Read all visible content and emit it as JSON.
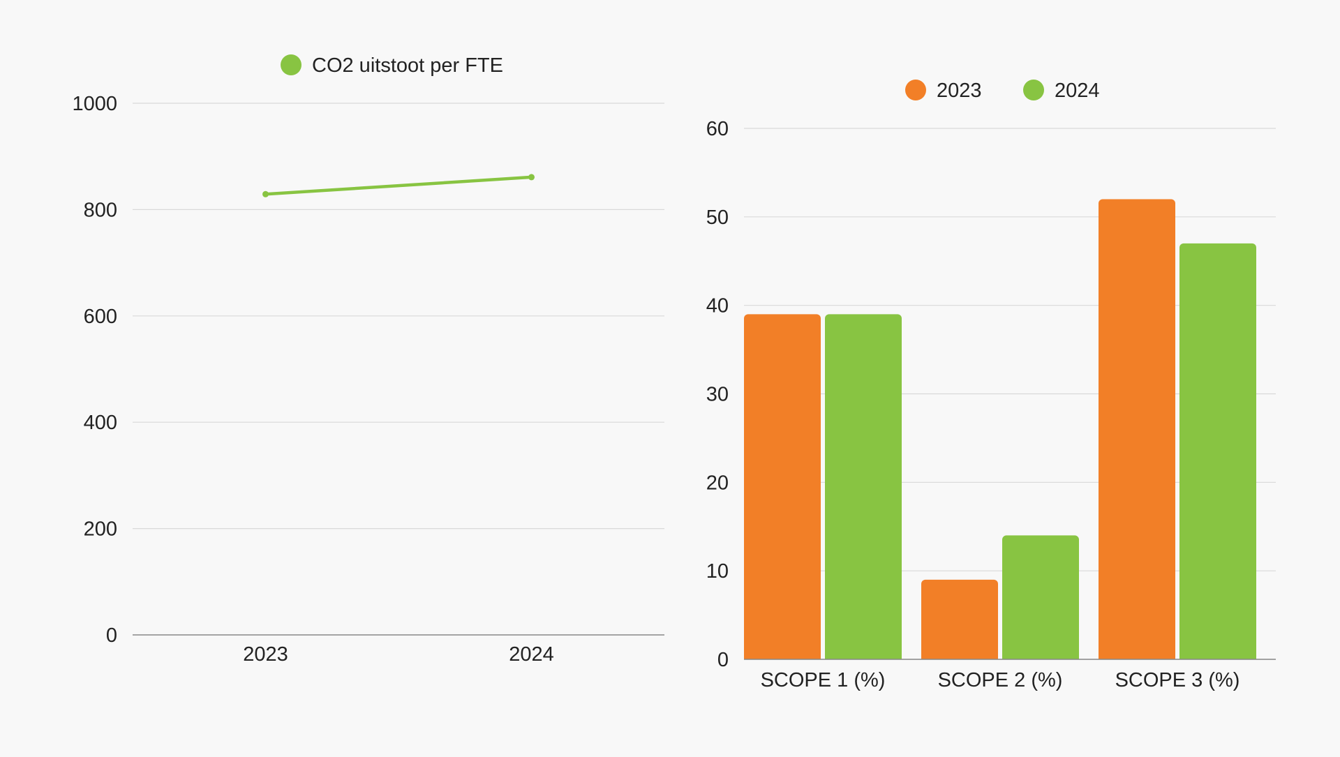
{
  "colors": {
    "background": "#f8f8f8",
    "gridline": "#d9d9d9",
    "axis": "#888888",
    "orange": "#f27f27",
    "green": "#88c442",
    "text": "#222222"
  },
  "chart_data": [
    {
      "type": "line",
      "title": "",
      "xlabel": "",
      "ylabel": "",
      "categories": [
        "2023",
        "2024"
      ],
      "series": [
        {
          "name": "CO2 uitstoot per FTE",
          "values": [
            829,
            861
          ],
          "color": "#88c442"
        }
      ],
      "ylim": [
        0,
        1000
      ],
      "yticks": [
        0,
        200,
        400,
        600,
        800,
        1000
      ],
      "grid": true,
      "legend": "top-center"
    },
    {
      "type": "bar",
      "title": "",
      "xlabel": "",
      "ylabel": "",
      "categories": [
        "SCOPE 1 (%)",
        "SCOPE 2 (%)",
        "SCOPE 3 (%)"
      ],
      "series": [
        {
          "name": "2023",
          "values": [
            39,
            9,
            52
          ],
          "color": "#f27f27"
        },
        {
          "name": "2024",
          "values": [
            39,
            14,
            47
          ],
          "color": "#88c442"
        }
      ],
      "ylim": [
        0,
        60
      ],
      "yticks": [
        0,
        10,
        20,
        30,
        40,
        50,
        60
      ],
      "grid": true,
      "legend": "top-center"
    }
  ]
}
